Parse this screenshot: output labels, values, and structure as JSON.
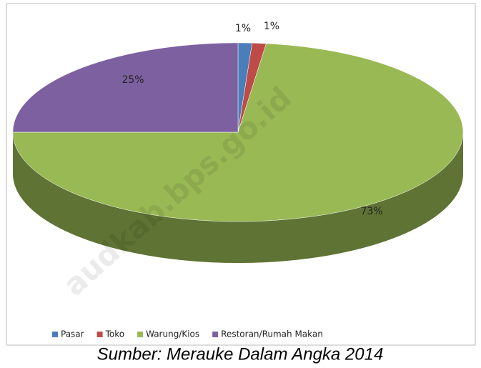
{
  "chart_data": {
    "type": "pie3d",
    "categories": [
      "Pasar",
      "Toko",
      "Warung/Kios",
      "Restoran/Rumah Makan"
    ],
    "values": [
      1,
      1,
      73,
      25
    ],
    "value_labels": [
      "1%",
      "1%",
      "73%",
      "25%"
    ],
    "colors": [
      "#4a7ebb",
      "#be4b48",
      "#98b954",
      "#7d60a0"
    ],
    "legend": "bottom",
    "caption": "Sumber: Merauke Dalam Angka 2014",
    "watermark": "audkab.bps.go.id"
  }
}
